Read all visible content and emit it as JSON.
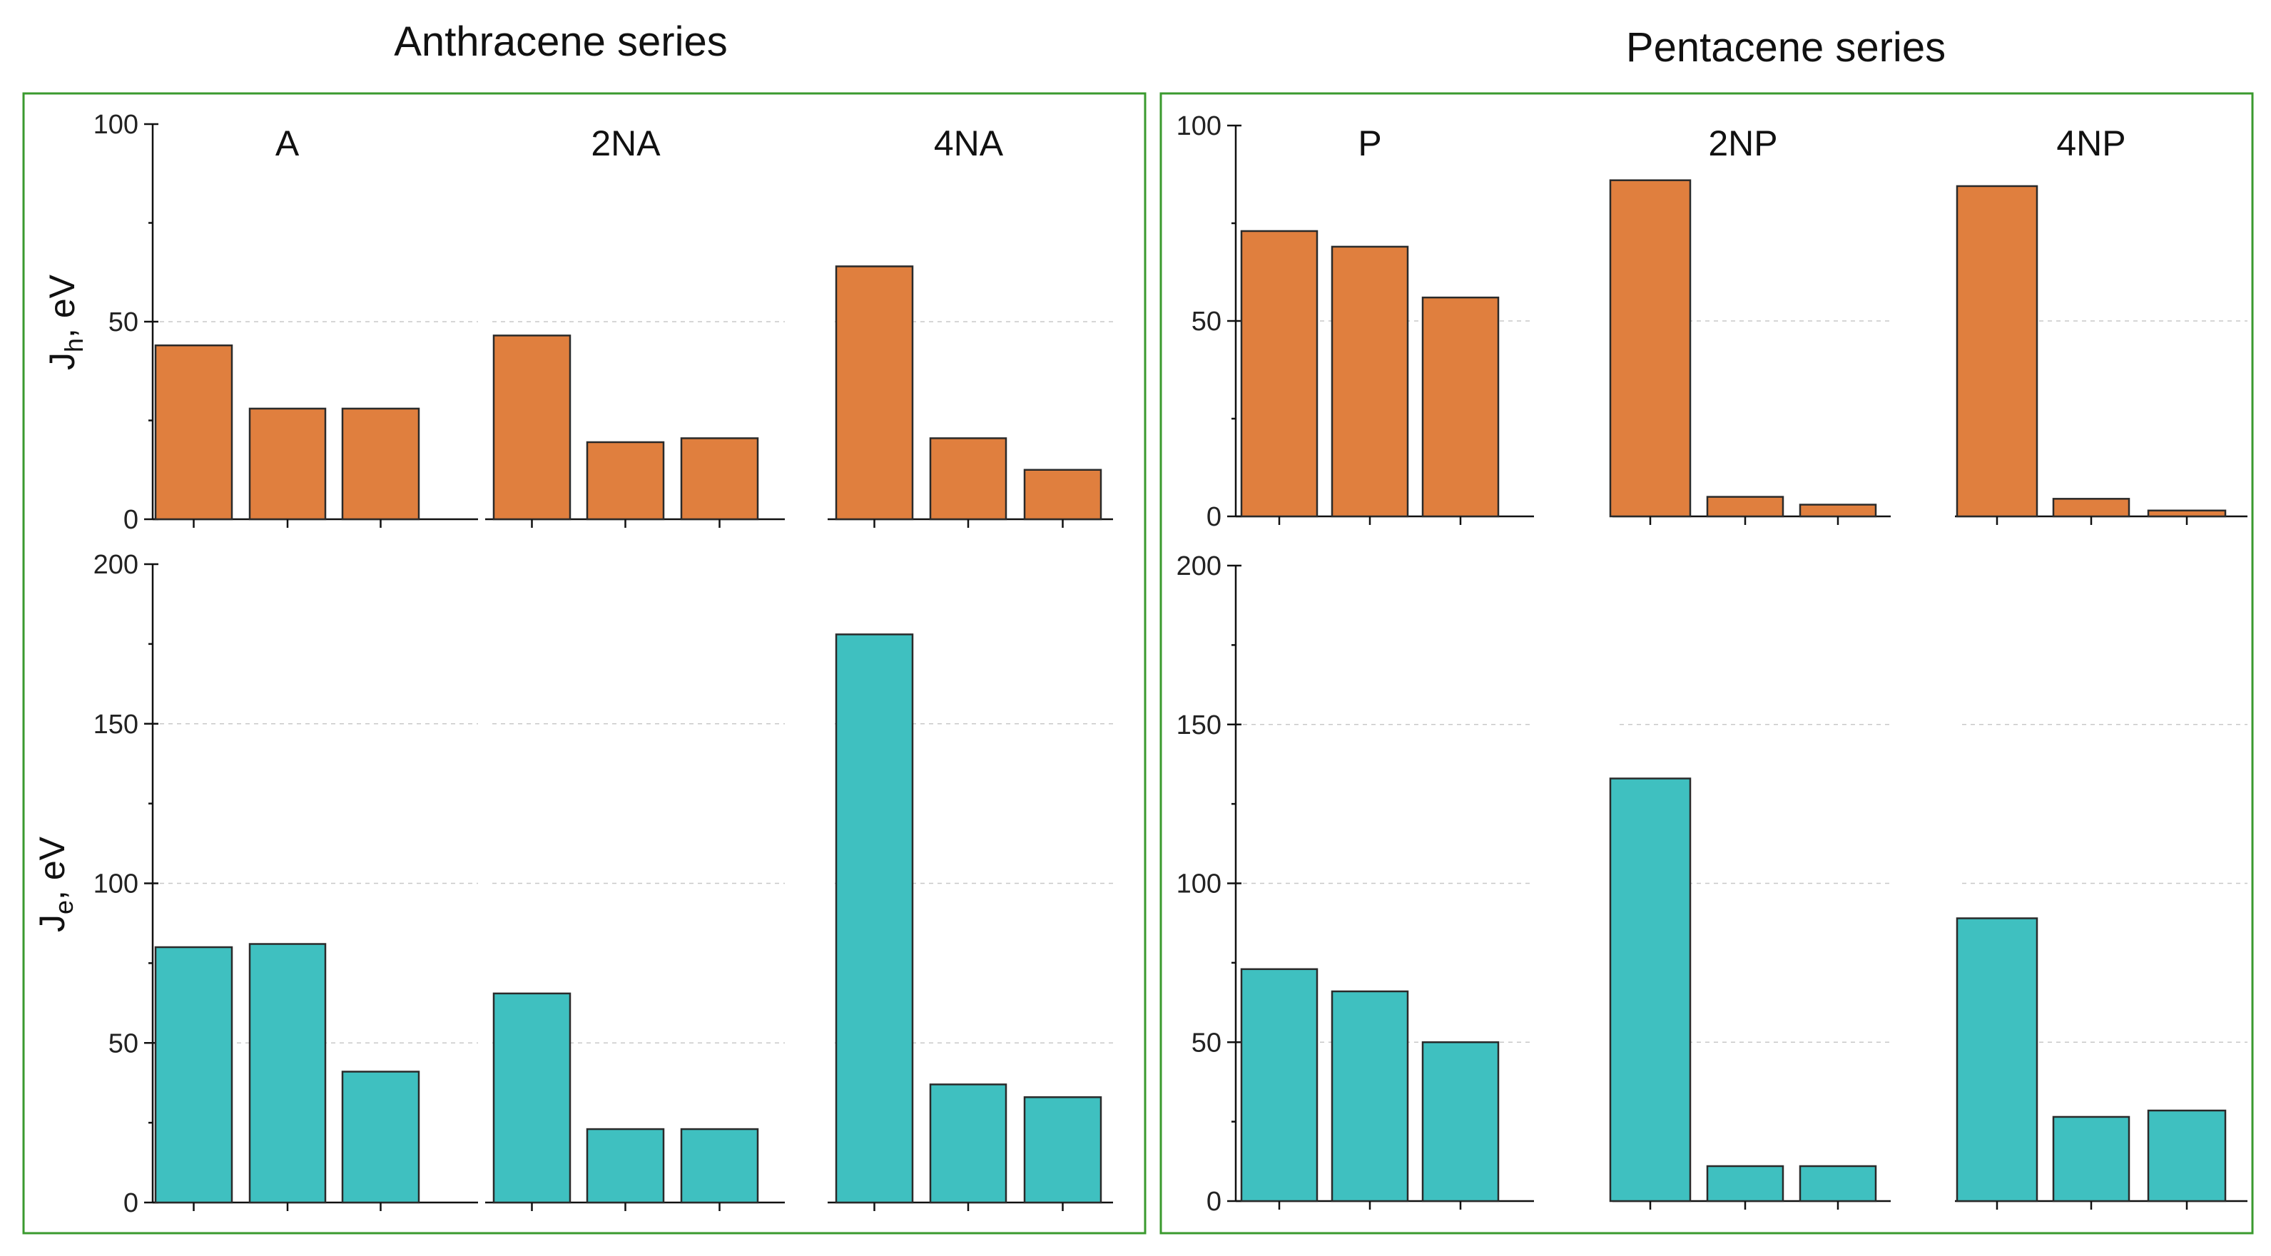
{
  "chart_data": {
    "type": "bar",
    "colors": {
      "hole": "#e07f3e",
      "electron": "#3fc0c0",
      "bar_edge": "#2a2a2a",
      "frame": "#3a9a2e"
    },
    "groups": [
      {
        "title": "Anthracene series",
        "panels": [
          {
            "label": "A",
            "hole": [
              44,
              28,
              28
            ],
            "electron": [
              80,
              81,
              41
            ]
          },
          {
            "label": "2NA",
            "hole": [
              46.5,
              19.5,
              20.5
            ],
            "electron": [
              65.5,
              23,
              23
            ]
          },
          {
            "label": "4NA",
            "hole": [
              64,
              20.5,
              12.5
            ],
            "electron": [
              178,
              37,
              33
            ]
          }
        ]
      },
      {
        "title": "Pentacene series",
        "panels": [
          {
            "label": "P",
            "hole": [
              73,
              69,
              56
            ],
            "electron": [
              73,
              66,
              50
            ]
          },
          {
            "label": "2NP",
            "hole": [
              86,
              5,
              3
            ],
            "electron": [
              133,
              11,
              11
            ]
          },
          {
            "label": "4NP",
            "hole": [
              84.5,
              4.5,
              1.5
            ],
            "electron": [
              89,
              26.5,
              28.5
            ]
          }
        ]
      }
    ],
    "hole_axis": {
      "ylabel_main": "J",
      "ylabel_sub": "h",
      "ylabel_unit": ", eV",
      "ylim": [
        0,
        100
      ],
      "ticks": [
        0,
        50,
        100
      ],
      "tick_labels": [
        "0",
        "50",
        "100"
      ]
    },
    "electron_axis": {
      "ylabel_main": "J",
      "ylabel_sub": "e",
      "ylabel_unit": ", eV",
      "ylim": [
        0,
        200
      ],
      "ticks": [
        0,
        50,
        100,
        150,
        200
      ],
      "tick_labels": [
        "0",
        "50",
        "100",
        "150",
        "200"
      ]
    }
  }
}
